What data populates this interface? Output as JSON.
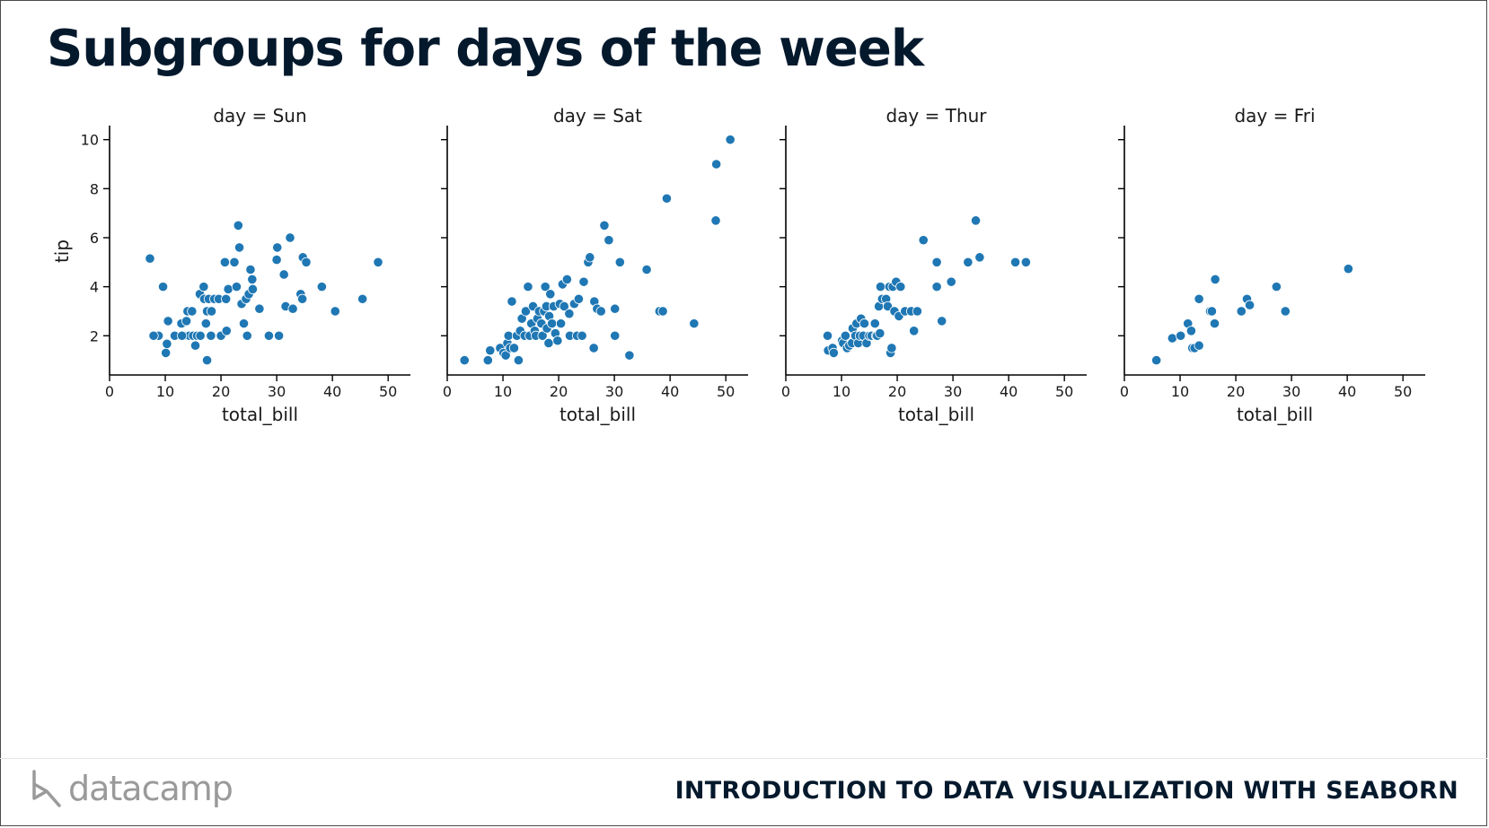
{
  "slide": {
    "title": "Subgroups for days of the week",
    "footer_course": "INTRODUCTION TO DATA VISUALIZATION WITH SEABORN",
    "logo_text": "datacamp",
    "logo_icon": "datacamp-logo-icon"
  },
  "colors": {
    "point": "#1f77b4",
    "title": "#05192d",
    "logo": "#9a9a9a"
  },
  "chart_data": {
    "type": "scatter",
    "xlabel": "total_bill",
    "ylabel": "tip",
    "xlim": [
      0,
      54
    ],
    "ylim": [
      0.4,
      10.5
    ],
    "xticks": [
      0,
      10,
      20,
      30,
      40,
      50
    ],
    "yticks": [
      2,
      4,
      6,
      8,
      10
    ],
    "panels": [
      {
        "title": "day = Sun",
        "points": [
          [
            7.25,
            5.15
          ],
          [
            9.6,
            4.0
          ],
          [
            8.8,
            2.0
          ],
          [
            10.1,
            1.3
          ],
          [
            10.3,
            1.67
          ],
          [
            10.5,
            2.6
          ],
          [
            12.9,
            2.5
          ],
          [
            13.4,
            2.0
          ],
          [
            13.8,
            2.6
          ],
          [
            14.0,
            3.0
          ],
          [
            14.3,
            2.0
          ],
          [
            14.8,
            3.0
          ],
          [
            15.0,
            2.0
          ],
          [
            15.4,
            1.6
          ],
          [
            15.7,
            2.0
          ],
          [
            16.2,
            3.7
          ],
          [
            16.3,
            2.0
          ],
          [
            16.9,
            4.0
          ],
          [
            17.0,
            3.5
          ],
          [
            17.3,
            2.5
          ],
          [
            17.5,
            3.0
          ],
          [
            17.5,
            1.0
          ],
          [
            17.8,
            3.5
          ],
          [
            18.2,
            2.0
          ],
          [
            18.3,
            3.0
          ],
          [
            18.8,
            3.5
          ],
          [
            19.6,
            3.5
          ],
          [
            20.0,
            2.0
          ],
          [
            20.7,
            5.0
          ],
          [
            20.9,
            3.5
          ],
          [
            21.0,
            2.2
          ],
          [
            21.3,
            3.9
          ],
          [
            22.4,
            5.0
          ],
          [
            22.8,
            4.0
          ],
          [
            23.1,
            6.5
          ],
          [
            23.3,
            5.6
          ],
          [
            23.7,
            3.3
          ],
          [
            24.1,
            2.5
          ],
          [
            24.5,
            3.5
          ],
          [
            24.7,
            2.0
          ],
          [
            25.0,
            3.7
          ],
          [
            25.3,
            4.7
          ],
          [
            25.6,
            4.3
          ],
          [
            25.7,
            3.9
          ],
          [
            26.9,
            3.1
          ],
          [
            28.6,
            2.0
          ],
          [
            30.0,
            5.1
          ],
          [
            30.1,
            5.6
          ],
          [
            30.4,
            2.0
          ],
          [
            31.3,
            4.5
          ],
          [
            31.6,
            3.2
          ],
          [
            32.4,
            6.0
          ],
          [
            32.9,
            3.1
          ],
          [
            34.3,
            3.7
          ],
          [
            34.6,
            3.5
          ],
          [
            34.7,
            5.2
          ],
          [
            35.3,
            5.0
          ],
          [
            38.1,
            4.0
          ],
          [
            40.5,
            3.0
          ],
          [
            45.4,
            3.5
          ],
          [
            48.2,
            5.0
          ],
          [
            7.9,
            2.0
          ],
          [
            11.7,
            2.0
          ],
          [
            13.0,
            2.0
          ]
        ]
      },
      {
        "title": "day = Sat",
        "points": [
          [
            3.1,
            1.0
          ],
          [
            7.3,
            1.0
          ],
          [
            7.7,
            1.4
          ],
          [
            9.5,
            1.5
          ],
          [
            10.1,
            1.3
          ],
          [
            10.5,
            1.2
          ],
          [
            10.8,
            1.7
          ],
          [
            11.0,
            2.0
          ],
          [
            11.3,
            1.5
          ],
          [
            11.6,
            3.4
          ],
          [
            12.0,
            1.5
          ],
          [
            12.5,
            2.0
          ],
          [
            12.8,
            1.0
          ],
          [
            13.1,
            2.2
          ],
          [
            13.4,
            2.7
          ],
          [
            13.9,
            2.0
          ],
          [
            14.1,
            3.0
          ],
          [
            14.5,
            4.0
          ],
          [
            14.8,
            2.0
          ],
          [
            15.1,
            2.5
          ],
          [
            15.4,
            3.2
          ],
          [
            15.7,
            2.2
          ],
          [
            15.9,
            2.0
          ],
          [
            16.2,
            2.7
          ],
          [
            16.5,
            3.0
          ],
          [
            16.9,
            2.5
          ],
          [
            17.1,
            2.0
          ],
          [
            17.4,
            3.0
          ],
          [
            17.6,
            4.0
          ],
          [
            17.8,
            3.2
          ],
          [
            17.9,
            2.3
          ],
          [
            18.2,
            1.7
          ],
          [
            18.3,
            2.8
          ],
          [
            18.5,
            3.7
          ],
          [
            18.8,
            2.5
          ],
          [
            19.1,
            3.2
          ],
          [
            19.4,
            2.1
          ],
          [
            19.8,
            1.8
          ],
          [
            20.2,
            3.3
          ],
          [
            20.4,
            2.5
          ],
          [
            20.7,
            4.1
          ],
          [
            21.0,
            3.2
          ],
          [
            21.5,
            4.3
          ],
          [
            21.9,
            2.9
          ],
          [
            22.0,
            2.0
          ],
          [
            22.8,
            3.3
          ],
          [
            23.3,
            2.0
          ],
          [
            23.6,
            3.5
          ],
          [
            24.2,
            2.0
          ],
          [
            24.5,
            4.2
          ],
          [
            25.3,
            5.0
          ],
          [
            25.6,
            5.2
          ],
          [
            26.3,
            1.5
          ],
          [
            26.4,
            3.4
          ],
          [
            26.9,
            3.1
          ],
          [
            27.6,
            3.0
          ],
          [
            28.2,
            6.5
          ],
          [
            29.0,
            5.9
          ],
          [
            30.1,
            3.1
          ],
          [
            30.1,
            2.0
          ],
          [
            31.0,
            5.0
          ],
          [
            32.7,
            1.2
          ],
          [
            35.8,
            4.7
          ],
          [
            38.1,
            3.0
          ],
          [
            38.7,
            3.0
          ],
          [
            39.4,
            7.6
          ],
          [
            44.3,
            2.5
          ],
          [
            48.2,
            6.7
          ],
          [
            48.3,
            9.0
          ],
          [
            50.8,
            10.0
          ]
        ]
      },
      {
        "title": "day = Thur",
        "points": [
          [
            7.5,
            2.0
          ],
          [
            7.6,
            1.4
          ],
          [
            8.4,
            1.5
          ],
          [
            8.6,
            1.3
          ],
          [
            10.1,
            1.8
          ],
          [
            10.3,
            1.7
          ],
          [
            10.7,
            2.0
          ],
          [
            11.0,
            1.5
          ],
          [
            11.4,
            1.6
          ],
          [
            11.9,
            1.7
          ],
          [
            12.0,
            2.3
          ],
          [
            12.5,
            2.0
          ],
          [
            12.7,
            2.5
          ],
          [
            13.0,
            1.7
          ],
          [
            13.3,
            2.0
          ],
          [
            13.5,
            2.7
          ],
          [
            13.9,
            2.0
          ],
          [
            14.1,
            2.5
          ],
          [
            14.5,
            1.7
          ],
          [
            15.0,
            2.0
          ],
          [
            15.4,
            2.0
          ],
          [
            16.0,
            2.5
          ],
          [
            16.2,
            2.0
          ],
          [
            16.4,
            2.0
          ],
          [
            16.7,
            3.2
          ],
          [
            16.9,
            2.1
          ],
          [
            17.0,
            4.0
          ],
          [
            17.3,
            3.5
          ],
          [
            18.0,
            3.5
          ],
          [
            18.3,
            3.2
          ],
          [
            18.6,
            4.0
          ],
          [
            18.8,
            1.3
          ],
          [
            19.0,
            1.5
          ],
          [
            19.2,
            4.0
          ],
          [
            19.5,
            3.0
          ],
          [
            19.8,
            4.2
          ],
          [
            20.3,
            2.8
          ],
          [
            20.6,
            4.0
          ],
          [
            21.4,
            3.0
          ],
          [
            22.5,
            3.0
          ],
          [
            23.0,
            2.2
          ],
          [
            23.6,
            3.0
          ],
          [
            24.7,
            5.9
          ],
          [
            27.1,
            5.0
          ],
          [
            27.1,
            4.0
          ],
          [
            28.0,
            2.6
          ],
          [
            29.7,
            4.2
          ],
          [
            32.7,
            5.0
          ],
          [
            34.1,
            6.7
          ],
          [
            34.8,
            5.2
          ],
          [
            41.2,
            5.0
          ],
          [
            43.1,
            5.0
          ]
        ]
      },
      {
        "title": "day = Fri",
        "points": [
          [
            5.75,
            1.0
          ],
          [
            8.6,
            1.9
          ],
          [
            10.1,
            2.0
          ],
          [
            11.4,
            2.5
          ],
          [
            12.0,
            2.2
          ],
          [
            12.2,
            1.5
          ],
          [
            12.6,
            1.5
          ],
          [
            13.4,
            1.6
          ],
          [
            13.4,
            3.5
          ],
          [
            15.4,
            3.0
          ],
          [
            15.7,
            3.0
          ],
          [
            16.2,
            2.5
          ],
          [
            16.3,
            4.3
          ],
          [
            21.0,
            3.0
          ],
          [
            22.0,
            3.5
          ],
          [
            22.5,
            3.25
          ],
          [
            27.3,
            4.0
          ],
          [
            28.9,
            3.0
          ],
          [
            40.2,
            4.73
          ]
        ]
      }
    ]
  }
}
